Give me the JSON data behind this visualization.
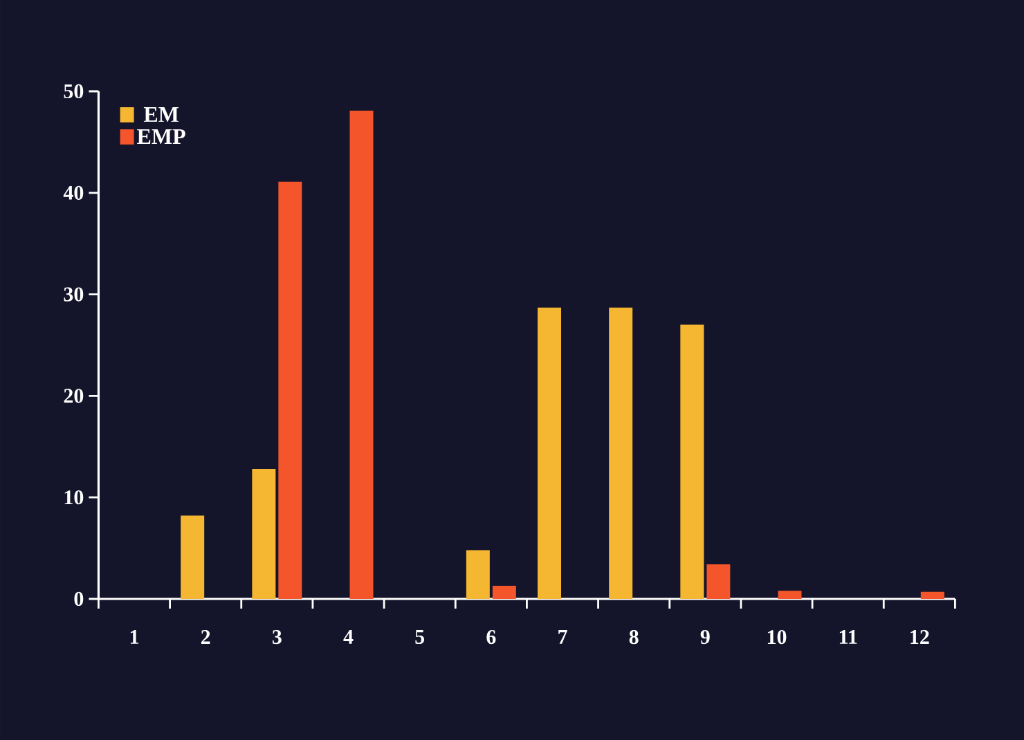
{
  "chart_data": {
    "type": "bar",
    "categories": [
      "1",
      "2",
      "3",
      "4",
      "5",
      "6",
      "7",
      "8",
      "9",
      "10",
      "11",
      "12"
    ],
    "series": [
      {
        "name": "EM",
        "color": "#f5b731",
        "values": [
          0,
          8.2,
          12.8,
          0,
          0,
          4.8,
          28.7,
          28.7,
          27,
          0,
          0,
          0
        ]
      },
      {
        "name": "EMP",
        "color": "#f4552a",
        "values": [
          0,
          0,
          41.1,
          48.1,
          0,
          1.3,
          0,
          0,
          3.4,
          0.8,
          0,
          0.7
        ]
      }
    ],
    "ylim": [
      0,
      50
    ],
    "yticks": [
      0,
      10,
      20,
      30,
      40,
      50
    ],
    "grid": false,
    "legend": "top left"
  }
}
